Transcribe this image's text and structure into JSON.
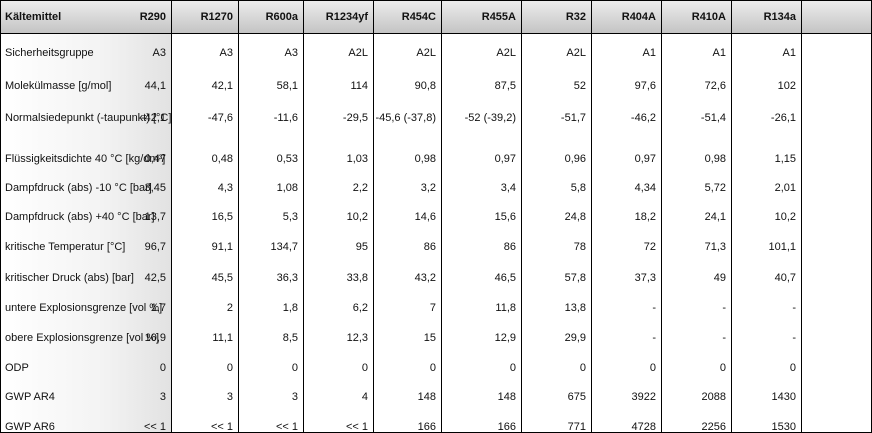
{
  "table": {
    "header": [
      "Kältemittel",
      "R290",
      "R1270",
      "R600a",
      "R1234yf",
      "R454C",
      "R455A",
      "R32",
      "R404A",
      "R410A",
      "R134a"
    ],
    "rows": [
      [
        "Sicherheitsgruppe",
        "A3",
        "A3",
        "A3",
        "A2L",
        "A2L",
        "A2L",
        "A2L",
        "A1",
        "A1",
        "A1"
      ],
      [
        "Molekülmasse [g/mol]",
        "44,1",
        "42,1",
        "58,1",
        "114",
        "90,8",
        "87,5",
        "52",
        "97,6",
        "72,6",
        "102"
      ],
      [
        "Normalsiedepunkt  (-taupunkt) [°C]",
        "-42,1",
        "-47,6",
        "-11,6",
        "-29,5",
        "-45,6 (-37,8)",
        "-52 (-39,2)",
        "-51,7",
        "-46,2",
        "-51,4",
        "-26,1"
      ],
      [
        "Flüssigkeitsdichte 40 °C [kg/dm³]",
        "0,47",
        "0,48",
        "0,53",
        "1,03",
        "0,98",
        "0,97",
        "0,96",
        "0,97",
        "0,98",
        "1,15"
      ],
      [
        "Dampfdruck  (abs) -10 °C [bar]",
        "3,45",
        "4,3",
        "1,08",
        "2,2",
        "3,2",
        "3,4",
        "5,8",
        "4,34",
        "5,72",
        "2,01"
      ],
      [
        "Dampfdruck  (abs) +40 °C [bar]",
        "13,7",
        "16,5",
        "5,3",
        "10,2",
        "14,6",
        "15,6",
        "24,8",
        "18,2",
        "24,1",
        "10,2"
      ],
      [
        "kritische Temperatur  [°C]",
        "96,7",
        "91,1",
        "134,7",
        "95",
        "86",
        "86",
        "78",
        "72",
        "71,3",
        "101,1"
      ],
      [
        "kritischer Druck (abs) [bar]",
        "42,5",
        "45,5",
        "36,3",
        "33,8",
        "43,2",
        "46,5",
        "57,8",
        "37,3",
        "49",
        "40,7"
      ],
      [
        "untere  Explosionsgrenze  [vol %]",
        "1,7",
        "2",
        "1,8",
        "6,2",
        "7",
        "11,8",
        "13,8",
        "-",
        "-",
        "-"
      ],
      [
        "obere  Explosionsgrenze  [vol %]",
        "10,9",
        "11,1",
        "8,5",
        "12,3",
        "15",
        "12,9",
        "29,9",
        "-",
        "-",
        "-"
      ],
      [
        "ODP",
        "0",
        "0",
        "0",
        "0",
        "0",
        "0",
        "0",
        "0",
        "0",
        "0"
      ],
      [
        "GWP AR4",
        "3",
        "3",
        "3",
        "4",
        "148",
        "148",
        "675",
        "3922",
        "2088",
        "1430"
      ],
      [
        "GWP AR6",
        "<< 1",
        "<< 1",
        "<< 1",
        "<< 1",
        "166",
        "166",
        "771",
        "4728",
        "2256",
        "1530"
      ]
    ]
  }
}
